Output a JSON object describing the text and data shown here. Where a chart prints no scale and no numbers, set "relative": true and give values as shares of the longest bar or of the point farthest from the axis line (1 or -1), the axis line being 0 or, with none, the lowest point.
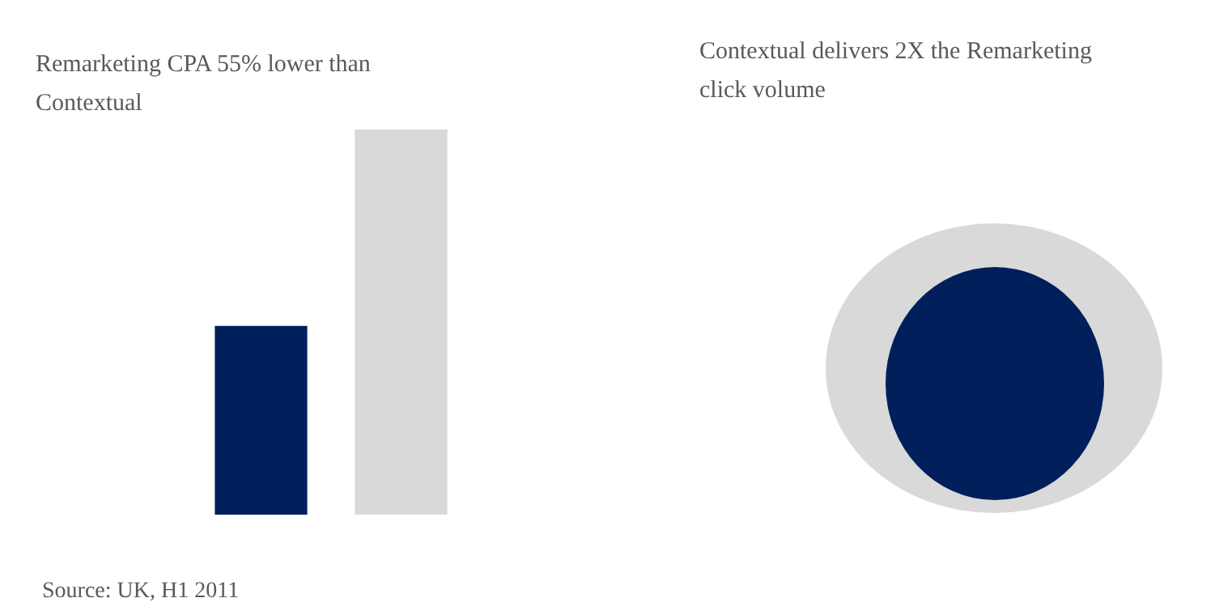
{
  "chart_data": [
    {
      "type": "bar",
      "title": "Remarketing CPA 55% lower than Contextual",
      "categories": [
        null,
        null
      ],
      "values": [
        0.49,
        1
      ],
      "colors": [
        "#001f5b",
        "#d9d9d9"
      ],
      "relative": true,
      "annotations": [
        "Source: UK, H1 2011"
      ]
    },
    {
      "type": "other",
      "title": "Contextual delivers 2X the Remarketing click volume"
    }
  ]
}
